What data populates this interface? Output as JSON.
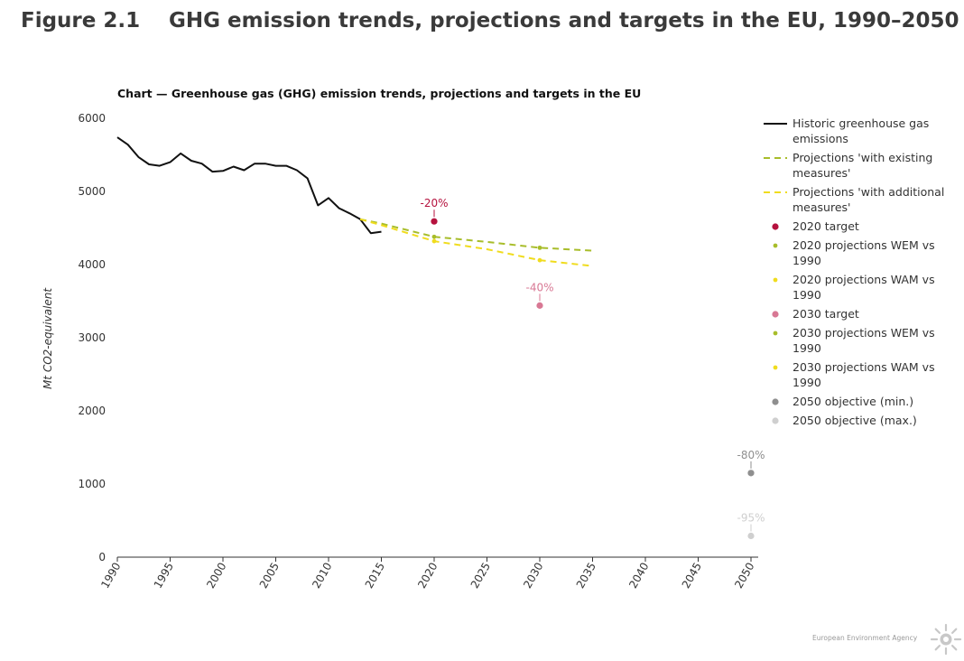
{
  "figure": {
    "number": "Figure 2.1",
    "title": "GHG emission trends, projections and targets in the EU, 1990–2050"
  },
  "footer": {
    "source_label": "European Environment Agency"
  },
  "chart_data": {
    "type": "line",
    "title": "Chart — Greenhouse gas (GHG) emission trends, projections and targets in the EU",
    "xlabel": "",
    "ylabel": "Mt CO2-equivalent",
    "xlim": [
      1990,
      2050
    ],
    "ylim": [
      0,
      6000
    ],
    "x_ticks": [
      1990,
      1995,
      2000,
      2005,
      2010,
      2015,
      2020,
      2025,
      2030,
      2035,
      2040,
      2045,
      2050
    ],
    "y_ticks": [
      0,
      1000,
      2000,
      3000,
      4000,
      5000,
      6000
    ],
    "grid": false,
    "legend_position": "right",
    "series": [
      {
        "name": "Historic greenhouse gas emissions",
        "style": "solid",
        "color": "#111111",
        "x": [
          1990,
          1991,
          1992,
          1993,
          1994,
          1995,
          1996,
          1997,
          1998,
          1999,
          2000,
          2001,
          2002,
          2003,
          2004,
          2005,
          2006,
          2007,
          2008,
          2009,
          2010,
          2011,
          2012,
          2013,
          2014,
          2015
        ],
        "y": [
          5740,
          5640,
          5470,
          5370,
          5350,
          5400,
          5520,
          5420,
          5380,
          5270,
          5280,
          5340,
          5290,
          5380,
          5380,
          5350,
          5350,
          5290,
          5180,
          4810,
          4910,
          4770,
          4700,
          4620,
          4430,
          4450
        ]
      },
      {
        "name": "Projections 'with existing measures'",
        "style": "dashed",
        "color": "#a8bd2a",
        "x": [
          2013,
          2015,
          2020,
          2025,
          2030,
          2035
        ],
        "y": [
          4620,
          4560,
          4380,
          4310,
          4230,
          4190
        ]
      },
      {
        "name": "Projections 'with additional measures'",
        "style": "dashed",
        "color": "#f0dc1e",
        "x": [
          2013,
          2015,
          2020,
          2025,
          2030,
          2035
        ],
        "y": [
          4620,
          4540,
          4320,
          4210,
          4060,
          3980
        ]
      }
    ],
    "points": [
      {
        "name": "2020 target",
        "x": 2020,
        "y": 4590,
        "color": "#b5123e",
        "label": "-20%"
      },
      {
        "name": "2020 projections WEM vs 1990",
        "x": 2020,
        "y": 4380,
        "color": "#a8bd2a"
      },
      {
        "name": "2020 projections WAM vs 1990",
        "x": 2020,
        "y": 4320,
        "color": "#f0dc1e"
      },
      {
        "name": "2030 target",
        "x": 2030,
        "y": 3440,
        "color": "#d87894",
        "label": "-40%"
      },
      {
        "name": "2030 projections WEM vs 1990",
        "x": 2030,
        "y": 4230,
        "color": "#a8bd2a"
      },
      {
        "name": "2030 projections WAM vs 1990",
        "x": 2030,
        "y": 4060,
        "color": "#f0dc1e"
      },
      {
        "name": "2050 objective (min.)",
        "x": 2050,
        "y": 1150,
        "color": "#8f8f8f",
        "label": "-80%"
      },
      {
        "name": "2050 objective (max.)",
        "x": 2050,
        "y": 290,
        "color": "#cfcfcf",
        "label": "-95%"
      }
    ],
    "legend": [
      {
        "label_lines": [
          "Historic greenhouse gas",
          "emissions"
        ],
        "symbol": "solid-line",
        "color": "#111111"
      },
      {
        "label_lines": [
          "Projections 'with existing",
          "measures'"
        ],
        "symbol": "dashed-line",
        "color": "#a8bd2a"
      },
      {
        "label_lines": [
          "Projections 'with additional",
          "measures'"
        ],
        "symbol": "dashed-line",
        "color": "#f0dc1e"
      },
      {
        "label_lines": [
          "2020 target"
        ],
        "symbol": "big-dot",
        "color": "#b5123e"
      },
      {
        "label_lines": [
          "2020 projections WEM vs",
          "1990"
        ],
        "symbol": "small-dot",
        "color": "#a8bd2a"
      },
      {
        "label_lines": [
          "2020 projections WAM vs",
          "1990"
        ],
        "symbol": "small-dot",
        "color": "#f0dc1e"
      },
      {
        "label_lines": [
          "2030 target"
        ],
        "symbol": "big-dot",
        "color": "#d87894"
      },
      {
        "label_lines": [
          "2030 projections WEM vs",
          "1990"
        ],
        "symbol": "small-dot",
        "color": "#a8bd2a"
      },
      {
        "label_lines": [
          "2030 projections WAM vs",
          "1990"
        ],
        "symbol": "small-dot",
        "color": "#f0dc1e"
      },
      {
        "label_lines": [
          "2050 objective (min.)"
        ],
        "symbol": "big-dot",
        "color": "#8f8f8f"
      },
      {
        "label_lines": [
          "2050 objective (max.)"
        ],
        "symbol": "big-dot",
        "color": "#cfcfcf"
      }
    ]
  }
}
